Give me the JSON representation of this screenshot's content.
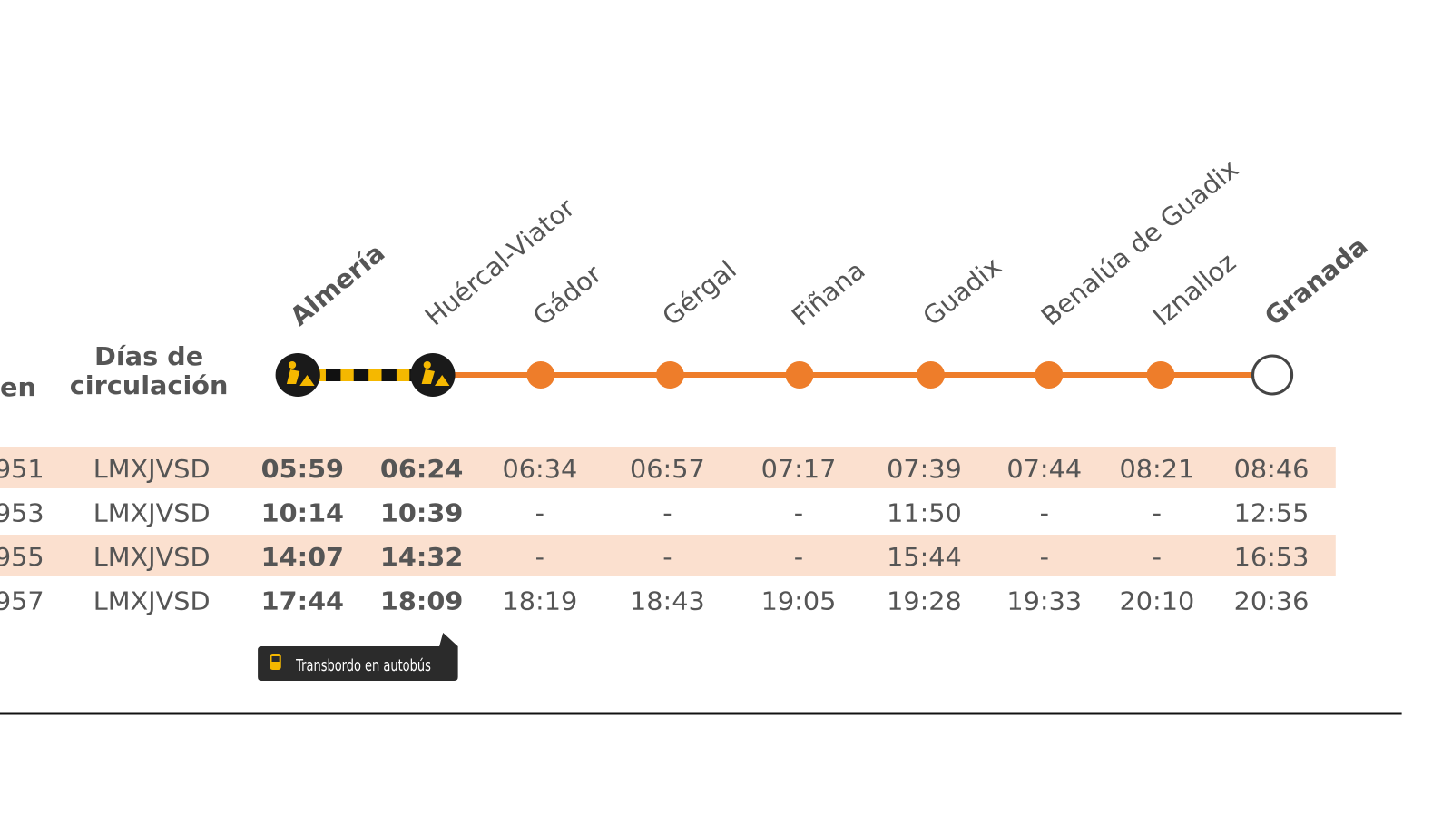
{
  "header": {
    "train": "en",
    "days": [
      "Días de",
      "circulación"
    ]
  },
  "stations": [
    "Almería",
    "Huércal-Viator",
    "Gádor",
    "Gérgal",
    "Fiñana",
    "Guadix",
    "Benalúa de Guadix",
    "Iznalloz",
    "Granada"
  ],
  "table": {
    "rows": [
      {
        "train": "951",
        "days": "LMXJVSD",
        "times": [
          "05:59",
          "06:24",
          "06:34",
          "06:57",
          "07:17",
          "07:39",
          "07:44",
          "08:21",
          "08:46"
        ]
      },
      {
        "train": "953",
        "days": "LMXJVSD",
        "times": [
          "10:14",
          "10:39",
          "-",
          "-",
          "-",
          "11:50",
          "-",
          "-",
          "12:55"
        ]
      },
      {
        "train": "955",
        "days": "LMXJVSD",
        "times": [
          "14:07",
          "14:32",
          "-",
          "-",
          "-",
          "15:44",
          "-",
          "-",
          "16:53"
        ]
      },
      {
        "train": "957",
        "days": "LMXJVSD",
        "times": [
          "17:44",
          "18:09",
          "18:19",
          "18:43",
          "19:05",
          "19:28",
          "19:33",
          "20:10",
          "20:36"
        ]
      }
    ]
  },
  "note": "Transbordo en autobús"
}
